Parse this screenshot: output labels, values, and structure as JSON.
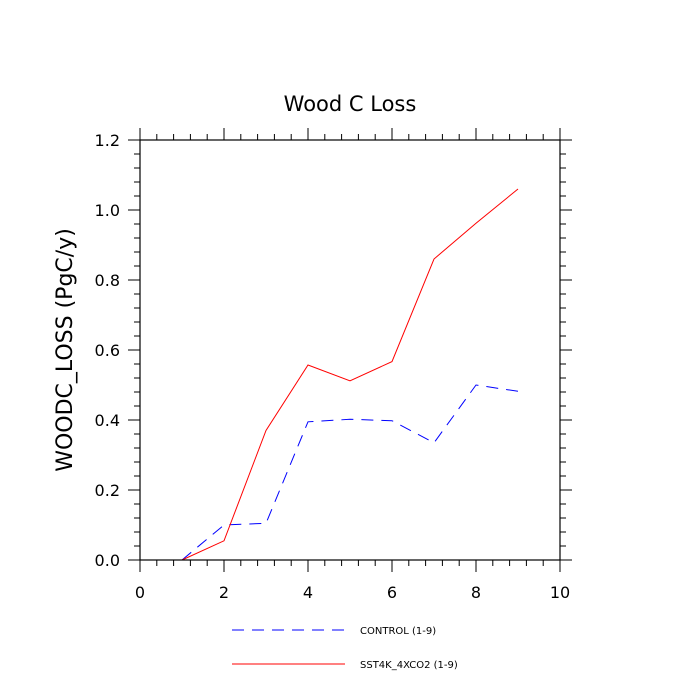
{
  "chart_data": {
    "type": "line",
    "title": "Wood C Loss",
    "xlabel": "",
    "ylabel": "WOODC_LOSS  (PgC/y)",
    "xlim": [
      0,
      10
    ],
    "ylim": [
      0,
      1.2
    ],
    "x_ticks": [
      0,
      2,
      4,
      6,
      8,
      10
    ],
    "x_tick_labels": [
      "0",
      "2",
      "4",
      "6",
      "8",
      "10"
    ],
    "y_ticks": [
      0,
      0.2,
      0.4,
      0.6,
      0.8,
      1.0,
      1.2
    ],
    "y_tick_labels": [
      "0.0",
      "0.2",
      "0.4",
      "0.6",
      "0.8",
      "1.0",
      "1.2"
    ],
    "x_minor_step": 0.4,
    "y_minor_step": 0.04,
    "grid": false,
    "legend_position": "bottom",
    "x": [
      1,
      2,
      3,
      4,
      5,
      6,
      7,
      8,
      9
    ],
    "series": [
      {
        "name": "CONTROL (1-9)",
        "color": "#0000ff",
        "style": "dashed",
        "values": [
          0.0,
          0.1,
          0.105,
          0.395,
          0.402,
          0.398,
          0.335,
          0.5,
          0.482
        ]
      },
      {
        "name": "SST4K_4XCO2 (1-9)",
        "color": "#ff0000",
        "style": "solid",
        "values": [
          0.0,
          0.055,
          0.37,
          0.557,
          0.512,
          0.567,
          0.86,
          0.962,
          1.06
        ]
      }
    ]
  }
}
